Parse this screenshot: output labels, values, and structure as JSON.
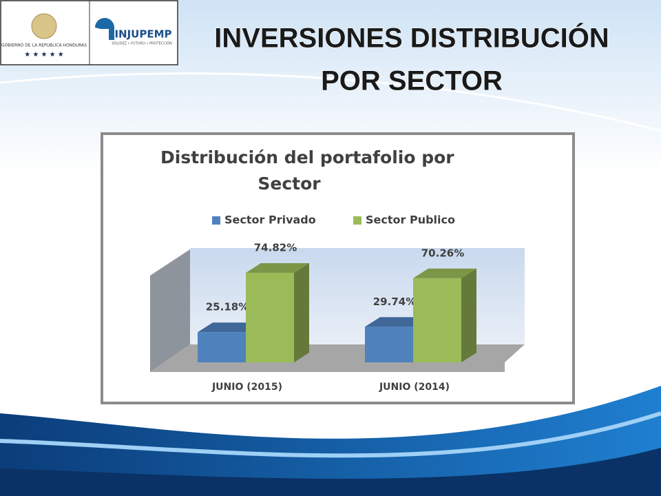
{
  "slide": {
    "title_lines": [
      "INVERSIONES DISTRIBUCIÓN",
      "POR SECTOR"
    ],
    "logo_left_text": "GOBIERNO DE LA REPUBLICA HONDURAS",
    "logo_right_name": "INJUPEMP",
    "logo_right_motto": "SÓLIDEZ • FUTURO • PROTECCIÓN"
  },
  "chart_data": {
    "type": "bar3d",
    "title_lines": [
      "Distribución del portafolio por",
      "Sector"
    ],
    "categories": [
      "JUNIO (2015)",
      "JUNIO (2014)"
    ],
    "series": [
      {
        "name": "Sector Privado",
        "color": "#4f81bd",
        "values": [
          25.18,
          29.74
        ],
        "value_labels": [
          "25.18%",
          "29.74%"
        ]
      },
      {
        "name": "Sector Publico",
        "color": "#9bbb59",
        "values": [
          74.82,
          70.26
        ],
        "value_labels": [
          "74.82%",
          "70.26%"
        ]
      }
    ]
  }
}
